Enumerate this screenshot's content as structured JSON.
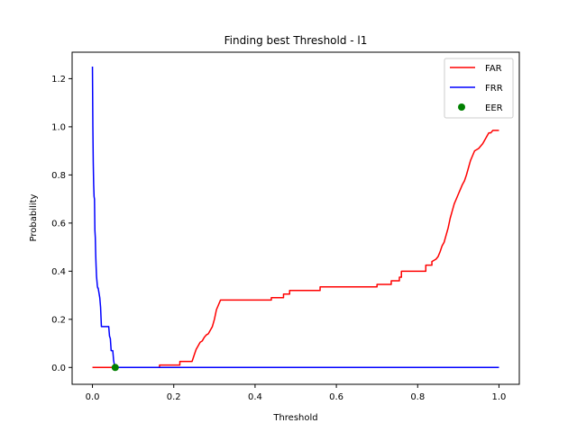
{
  "chart_data": {
    "type": "line",
    "title": "Finding best Threshold - l1",
    "xlabel": "Threshold",
    "ylabel": "Probability",
    "xlim": [
      -0.05,
      1.05
    ],
    "ylim": [
      -0.07,
      1.31
    ],
    "x_ticks": [
      0.0,
      0.2,
      0.4,
      0.6,
      0.8,
      1.0
    ],
    "x_tick_labels": [
      "0.0",
      "0.2",
      "0.4",
      "0.6",
      "0.8",
      "1.0"
    ],
    "y_ticks": [
      0.0,
      0.2,
      0.4,
      0.6,
      0.8,
      1.0,
      1.2
    ],
    "y_tick_labels": [
      "0.0",
      "0.2",
      "0.4",
      "0.6",
      "0.8",
      "1.0",
      "1.2"
    ],
    "grid": false,
    "legend_position": "top-right",
    "series": [
      {
        "name": "FAR",
        "kind": "line",
        "color": "#ff0000",
        "x": [
          0.0,
          0.05,
          0.1,
          0.165,
          0.165,
          0.215,
          0.215,
          0.245,
          0.25,
          0.255,
          0.26,
          0.265,
          0.27,
          0.275,
          0.28,
          0.285,
          0.29,
          0.295,
          0.3,
          0.305,
          0.31,
          0.315,
          0.32,
          0.44,
          0.44,
          0.47,
          0.47,
          0.485,
          0.485,
          0.56,
          0.56,
          0.7,
          0.7,
          0.735,
          0.735,
          0.755,
          0.755,
          0.76,
          0.76,
          0.82,
          0.82,
          0.835,
          0.835,
          0.845,
          0.85,
          0.855,
          0.86,
          0.865,
          0.87,
          0.875,
          0.88,
          0.885,
          0.89,
          0.895,
          0.9,
          0.905,
          0.91,
          0.915,
          0.92,
          0.925,
          0.93,
          0.935,
          0.94,
          0.95,
          0.96,
          0.965,
          0.97,
          0.975,
          0.98,
          0.985,
          0.99,
          1.0
        ],
        "y": [
          0.0,
          0.0,
          0.0,
          0.0,
          0.01,
          0.01,
          0.025,
          0.025,
          0.05,
          0.075,
          0.09,
          0.105,
          0.11,
          0.125,
          0.135,
          0.14,
          0.155,
          0.17,
          0.2,
          0.24,
          0.26,
          0.28,
          0.28,
          0.28,
          0.29,
          0.29,
          0.305,
          0.305,
          0.32,
          0.32,
          0.335,
          0.335,
          0.345,
          0.345,
          0.36,
          0.36,
          0.375,
          0.375,
          0.4,
          0.4,
          0.425,
          0.425,
          0.44,
          0.45,
          0.46,
          0.48,
          0.505,
          0.52,
          0.55,
          0.58,
          0.62,
          0.65,
          0.68,
          0.7,
          0.72,
          0.74,
          0.76,
          0.775,
          0.8,
          0.83,
          0.86,
          0.88,
          0.9,
          0.91,
          0.93,
          0.945,
          0.96,
          0.975,
          0.975,
          0.985,
          0.985,
          0.985
        ]
      },
      {
        "name": "FRR",
        "kind": "line",
        "color": "#0000ff",
        "x": [
          0.0,
          0.001,
          0.002,
          0.003,
          0.004,
          0.005,
          0.006,
          0.007,
          0.008,
          0.009,
          0.01,
          0.011,
          0.012,
          0.013,
          0.014,
          0.016,
          0.018,
          0.02,
          0.022,
          0.024,
          0.04,
          0.042,
          0.044,
          0.046,
          0.05,
          0.052,
          0.054,
          0.056,
          0.1,
          0.2,
          0.4,
          0.6,
          0.8,
          1.0
        ],
        "y": [
          1.25,
          1.0,
          0.85,
          0.76,
          0.71,
          0.7,
          0.57,
          0.54,
          0.47,
          0.42,
          0.38,
          0.36,
          0.34,
          0.33,
          0.33,
          0.31,
          0.29,
          0.25,
          0.17,
          0.17,
          0.17,
          0.13,
          0.12,
          0.07,
          0.07,
          0.03,
          0.01,
          0.0,
          0.0,
          0.0,
          0.0,
          0.0,
          0.0,
          0.0
        ]
      },
      {
        "name": "EER",
        "kind": "scatter",
        "color": "#008000",
        "x": [
          0.056
        ],
        "y": [
          0.0
        ]
      }
    ]
  }
}
